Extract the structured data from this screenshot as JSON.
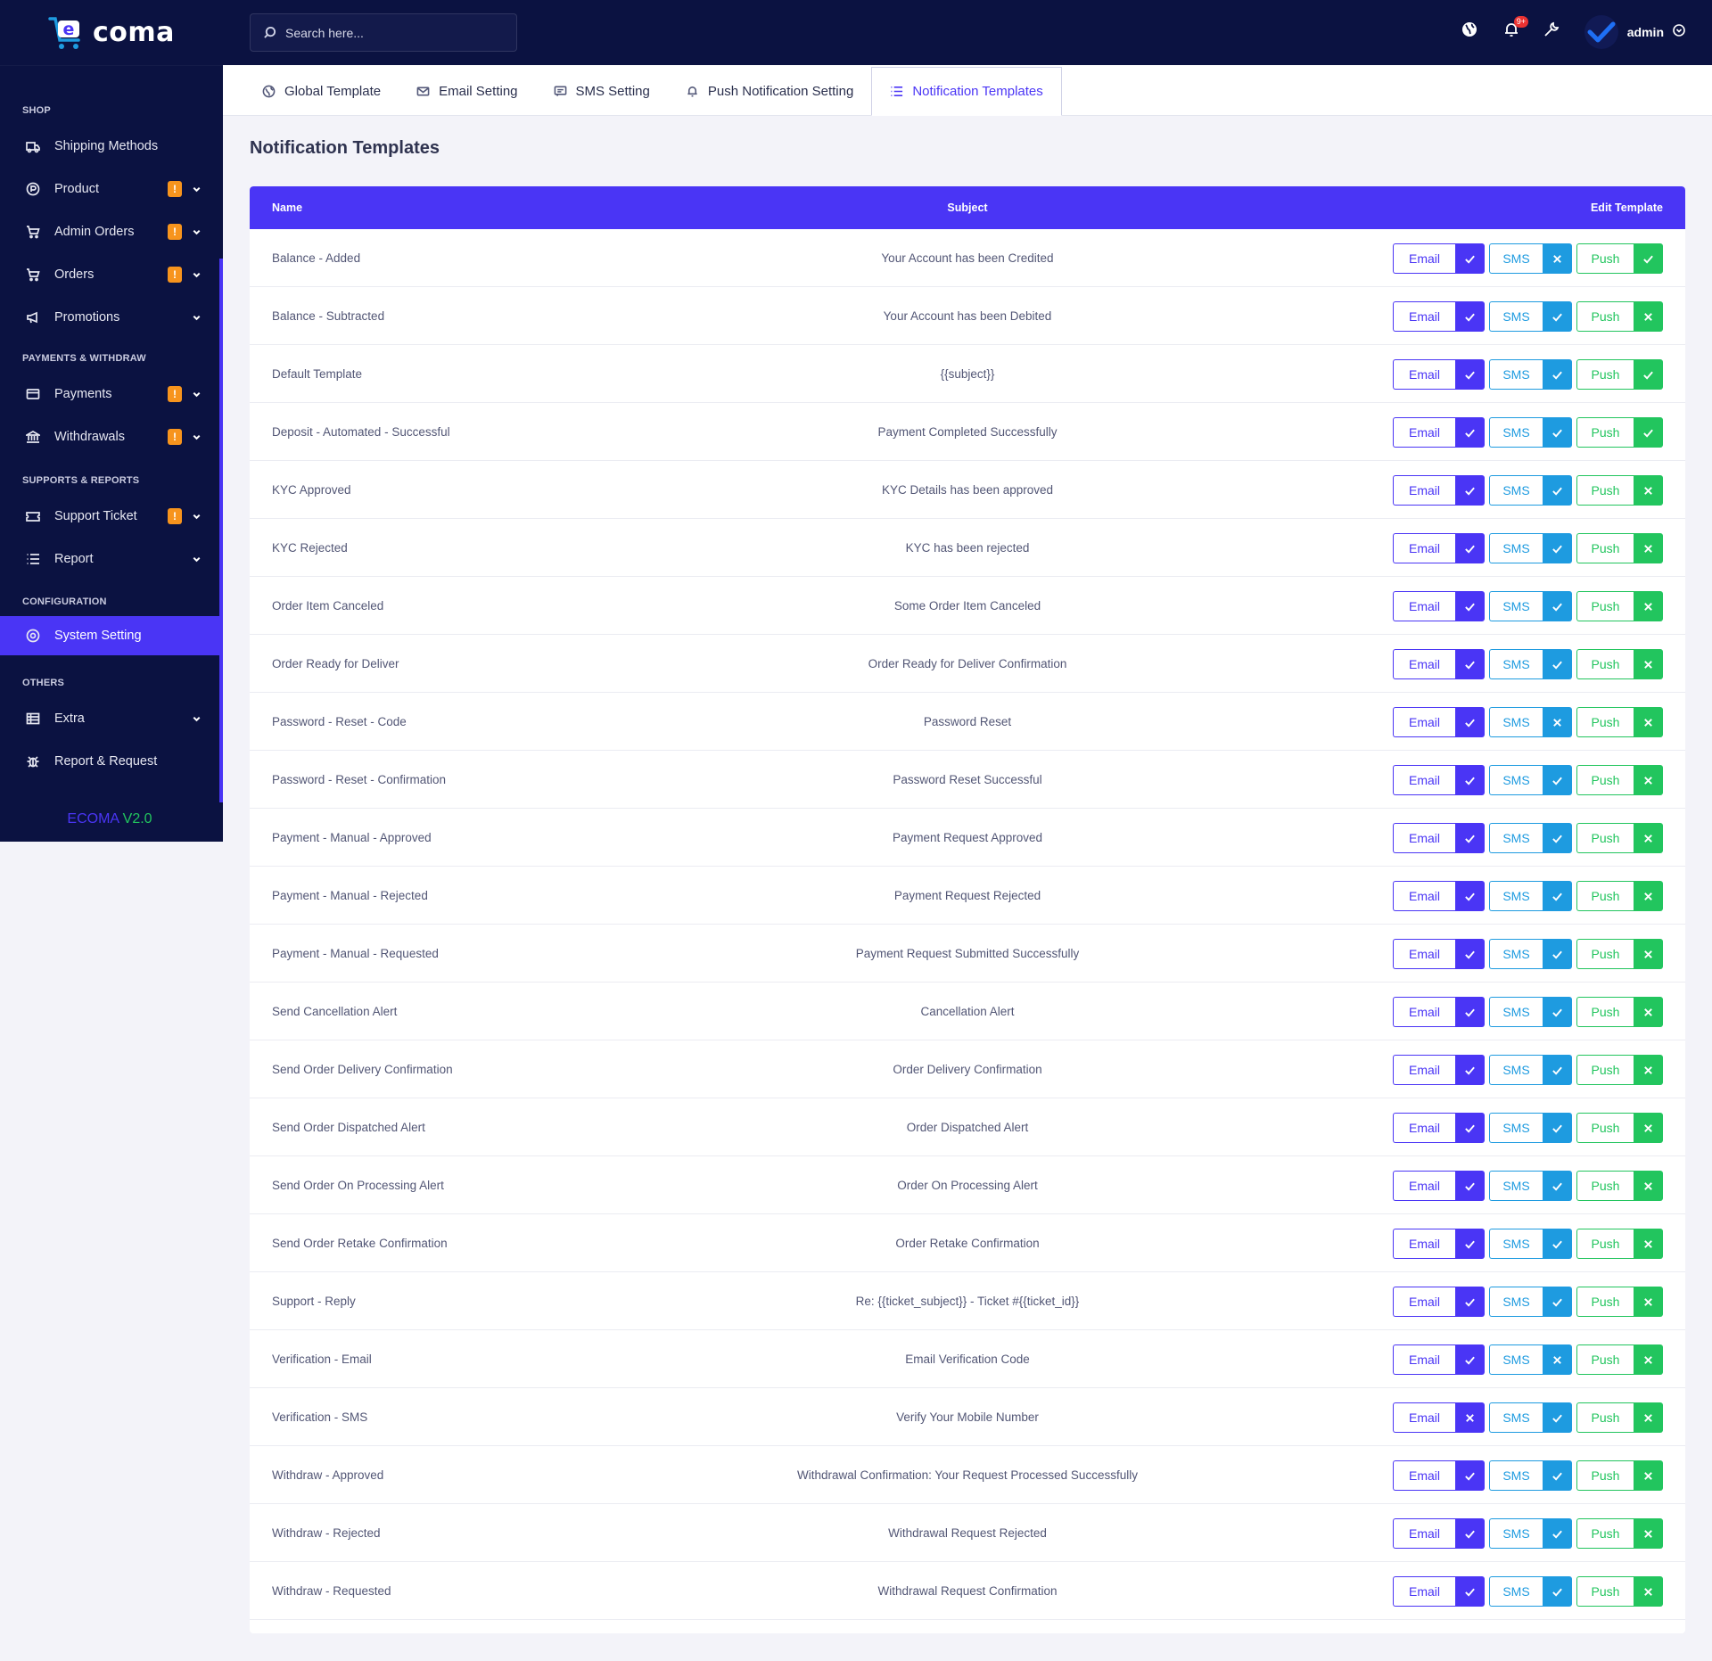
{
  "brand": {
    "prefix": "e",
    "name": "coma"
  },
  "sidebar": {
    "sections": [
      {
        "title": "SHOP",
        "items": [
          {
            "label": "Shipping Methods",
            "icon": "truck-icon",
            "badge": "",
            "caret": false
          },
          {
            "label": "Product",
            "icon": "product-icon",
            "badge": "!",
            "caret": true
          },
          {
            "label": "Admin Orders",
            "icon": "cart-icon",
            "badge": "!",
            "caret": true
          },
          {
            "label": "Orders",
            "icon": "cart-icon",
            "badge": "!",
            "caret": true
          },
          {
            "label": "Promotions",
            "icon": "megaphone-icon",
            "badge": "",
            "caret": true
          }
        ]
      },
      {
        "title": "PAYMENTS & WITHDRAW",
        "items": [
          {
            "label": "Payments",
            "icon": "card-icon",
            "badge": "!",
            "caret": true
          },
          {
            "label": "Withdrawals",
            "icon": "bank-icon",
            "badge": "!",
            "caret": true
          }
        ]
      },
      {
        "title": "SUPPORTS & REPORTS",
        "items": [
          {
            "label": "Support Ticket",
            "icon": "ticket-icon",
            "badge": "!",
            "caret": true
          },
          {
            "label": "Report",
            "icon": "list-icon",
            "badge": "",
            "caret": true
          }
        ]
      },
      {
        "title": "CONFIGURATION",
        "items": [
          {
            "label": "System Setting",
            "icon": "gear-icon",
            "badge": "",
            "caret": false,
            "active": true
          }
        ]
      },
      {
        "title": "OTHERS",
        "items": [
          {
            "label": "Extra",
            "icon": "table-icon",
            "badge": "",
            "caret": true
          },
          {
            "label": "Report & Request",
            "icon": "bug-icon",
            "badge": "",
            "caret": false
          }
        ]
      }
    ],
    "version_name": "ECOMA",
    "version_number": "V2.0"
  },
  "topbar": {
    "search_placeholder": "Search here...",
    "notification_count": "9+",
    "user_name": "admin"
  },
  "tabs": [
    {
      "label": "Global Template",
      "icon": "globe-icon",
      "active": false
    },
    {
      "label": "Email Setting",
      "icon": "mail-icon",
      "active": false
    },
    {
      "label": "SMS Setting",
      "icon": "message-icon",
      "active": false
    },
    {
      "label": "Push Notification Setting",
      "icon": "bell-icon",
      "active": false
    },
    {
      "label": "Notification Templates",
      "icon": "list-icon",
      "active": true
    }
  ],
  "main": {
    "title": "Notification Templates",
    "columns": {
      "name": "Name",
      "subject": "Subject",
      "edit": "Edit Template"
    },
    "button_labels": {
      "email": "Email",
      "sms": "SMS",
      "push": "Push"
    },
    "colors": {
      "primary": "#4a35f5",
      "sms": "#1e9be0",
      "push": "#22c55e",
      "sidebar": "#0b1241",
      "badge": "#f7941d"
    },
    "rows": [
      {
        "name": "Balance - Added",
        "subject": "Your Account has been Credited",
        "email": true,
        "sms": false,
        "push": true
      },
      {
        "name": "Balance - Subtracted",
        "subject": "Your Account has been Debited",
        "email": true,
        "sms": true,
        "push": false
      },
      {
        "name": "Default Template",
        "subject": "{{subject}}",
        "email": true,
        "sms": true,
        "push": true
      },
      {
        "name": "Deposit - Automated - Successful",
        "subject": "Payment Completed Successfully",
        "email": true,
        "sms": true,
        "push": true
      },
      {
        "name": "KYC Approved",
        "subject": "KYC Details has been approved",
        "email": true,
        "sms": true,
        "push": false
      },
      {
        "name": "KYC Rejected",
        "subject": "KYC has been rejected",
        "email": true,
        "sms": true,
        "push": false
      },
      {
        "name": "Order Item Canceled",
        "subject": "Some Order Item Canceled",
        "email": true,
        "sms": true,
        "push": false
      },
      {
        "name": "Order Ready for Deliver",
        "subject": "Order Ready for Deliver Confirmation",
        "email": true,
        "sms": true,
        "push": false
      },
      {
        "name": "Password - Reset - Code",
        "subject": "Password Reset",
        "email": true,
        "sms": false,
        "push": false
      },
      {
        "name": "Password - Reset - Confirmation",
        "subject": "Password Reset Successful",
        "email": true,
        "sms": true,
        "push": false
      },
      {
        "name": "Payment - Manual - Approved",
        "subject": "Payment Request Approved",
        "email": true,
        "sms": true,
        "push": false
      },
      {
        "name": "Payment - Manual - Rejected",
        "subject": "Payment Request Rejected",
        "email": true,
        "sms": true,
        "push": false
      },
      {
        "name": "Payment - Manual - Requested",
        "subject": "Payment Request Submitted Successfully",
        "email": true,
        "sms": true,
        "push": false
      },
      {
        "name": "Send Cancellation Alert",
        "subject": "Cancellation Alert",
        "email": true,
        "sms": true,
        "push": false
      },
      {
        "name": "Send Order Delivery Confirmation",
        "subject": "Order Delivery Confirmation",
        "email": true,
        "sms": true,
        "push": false
      },
      {
        "name": "Send Order Dispatched Alert",
        "subject": "Order Dispatched Alert",
        "email": true,
        "sms": true,
        "push": false
      },
      {
        "name": "Send Order On Processing Alert",
        "subject": "Order On Processing Alert",
        "email": true,
        "sms": true,
        "push": false
      },
      {
        "name": "Send Order Retake Confirmation",
        "subject": "Order Retake Confirmation",
        "email": true,
        "sms": true,
        "push": false
      },
      {
        "name": "Support - Reply",
        "subject": "Re: {{ticket_subject}} - Ticket #{{ticket_id}}",
        "email": true,
        "sms": true,
        "push": false
      },
      {
        "name": "Verification - Email",
        "subject": "Email Verification Code",
        "email": true,
        "sms": false,
        "push": false
      },
      {
        "name": "Verification - SMS",
        "subject": "Verify Your Mobile Number",
        "email": false,
        "sms": true,
        "push": false
      },
      {
        "name": "Withdraw - Approved",
        "subject": "Withdrawal Confirmation: Your Request Processed Successfully",
        "email": true,
        "sms": true,
        "push": false
      },
      {
        "name": "Withdraw - Rejected",
        "subject": "Withdrawal Request Rejected",
        "email": true,
        "sms": true,
        "push": false
      },
      {
        "name": "Withdraw - Requested",
        "subject": "Withdrawal Request Confirmation",
        "email": true,
        "sms": true,
        "push": false
      }
    ]
  }
}
